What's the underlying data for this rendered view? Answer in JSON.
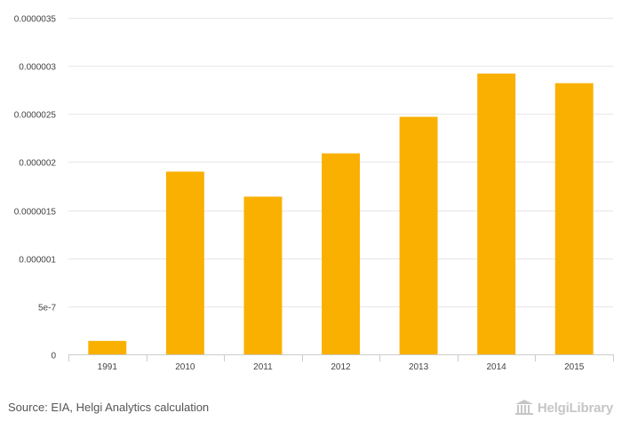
{
  "chart_data": {
    "type": "bar",
    "title": "",
    "xlabel": "",
    "ylabel": "",
    "categories": [
      "1991",
      "2010",
      "2011",
      "2012",
      "2013",
      "2014",
      "2015"
    ],
    "values": [
      1.4e-07,
      1.9e-06,
      1.64e-06,
      2.09e-06,
      2.47e-06,
      2.92e-06,
      2.82e-06
    ],
    "ylim": [
      0,
      3.5e-06
    ],
    "yticks": [
      0,
      5e-07,
      1e-06,
      1.5e-06,
      2e-06,
      2.5e-06,
      3e-06,
      3.5e-06
    ],
    "ytick_labels": [
      "0",
      "5e-7",
      "0.000001",
      "0.0000015",
      "0.000002",
      "0.0000025",
      "0.000003",
      "0.0000035"
    ],
    "grid": true,
    "legend": "none",
    "bar_color": "#f9b000"
  },
  "footer": {
    "source": "Source: EIA, Helgi Analytics calculation",
    "brand": "HelgiLibrary"
  },
  "colors": {
    "grid": "#e6e6e6",
    "axis": "#cccccc",
    "tick_text": "#444444",
    "brand": "#c6c6c6"
  }
}
